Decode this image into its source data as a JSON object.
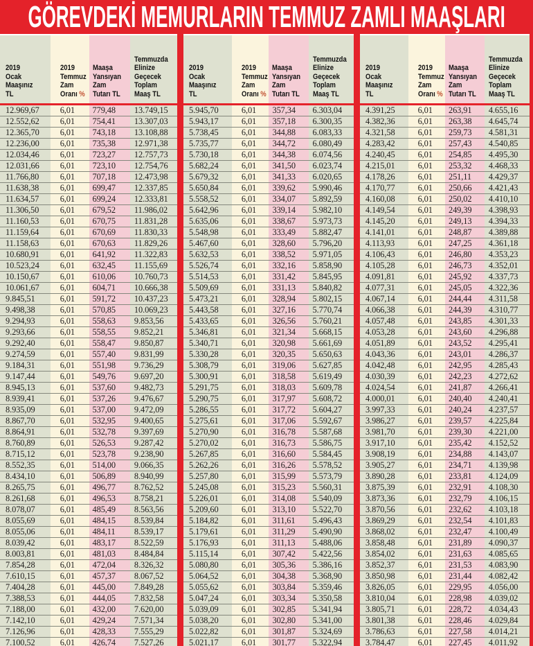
{
  "header": {
    "title": "GÖREVDEKİ MEMURLARIN TEMMUZ ZAMLI MAAŞLARI"
  },
  "column_headers": [
    {
      "id": "january-salary",
      "lines": [
        "2019",
        "Ocak",
        "Maaşınız",
        "TL"
      ]
    },
    {
      "id": "raise-rate",
      "lines": [
        "2019",
        "Temmuz",
        "Zam",
        "Oranı"
      ],
      "percent_suffix": "%"
    },
    {
      "id": "raise-amount",
      "lines": [
        "Maaşa",
        "Yansıyan",
        "Zam",
        "Tutarı TL"
      ]
    },
    {
      "id": "total-salary",
      "lines": [
        "Temmuzda",
        "Elinize",
        "Geçecek",
        "Toplam",
        "Maaş TL"
      ]
    }
  ],
  "colors": {
    "accent_red": "#e4222a",
    "band_green": "#dee1d0",
    "band_cream": "#fbf4dd",
    "band_pink": "#f5cdd5",
    "row_line": "#84877c",
    "text_color": "#1e1c1b",
    "percent_color": "#c25232"
  },
  "groups": [
    {
      "rows": [
        [
          "12.969,67",
          "6,01",
          "779,48",
          "13.749,15"
        ],
        [
          "12.552,62",
          "6,01",
          "754,41",
          "13.307,03"
        ],
        [
          "12.365,70",
          "6,01",
          "743,18",
          "13.108,88"
        ],
        [
          "12.236,00",
          "6,01",
          "735,38",
          "12.971,38"
        ],
        [
          "12.034,46",
          "6,01",
          "723,27",
          "12.757,73"
        ],
        [
          "12.031,66",
          "6,01",
          "723,10",
          "12.754,76"
        ],
        [
          "11.766,80",
          "6,01",
          "707,18",
          "12.473,98"
        ],
        [
          "11.638,38",
          "6,01",
          "699,47",
          "12.337,85"
        ],
        [
          "11.634,57",
          "6,01",
          "699,24",
          "12.333,81"
        ],
        [
          "11.306,50",
          "6,01",
          "679,52",
          "11.986,02"
        ],
        [
          "11.160,53",
          "6,01",
          "670,75",
          "11.831,28"
        ],
        [
          "11.159,64",
          "6,01",
          "670,69",
          "11.830,33"
        ],
        [
          "11.158,63",
          "6,01",
          "670,63",
          "11.829,26"
        ],
        [
          "10.680,91",
          "6,01",
          "641,92",
          "11.322,83"
        ],
        [
          "10.523,24",
          "6,01",
          "632,45",
          "11.155,69"
        ],
        [
          "10.150,67",
          "6,01",
          "610,06",
          "10.760,73"
        ],
        [
          "10.061,67",
          "6,01",
          "604,71",
          "10.666,38"
        ],
        [
          "9.845,51",
          "6,01",
          "591,72",
          "10.437,23"
        ],
        [
          "9.498,38",
          "6,01",
          "570,85",
          "10.069,23"
        ],
        [
          "9.294,93",
          "6,01",
          "558,63",
          "9.853,56"
        ],
        [
          "9.293,66",
          "6,01",
          "558,55",
          "9.852,21"
        ],
        [
          "9.292,40",
          "6,01",
          "558,47",
          "9.850,87"
        ],
        [
          "9.274,59",
          "6,01",
          "557,40",
          "9.831,99"
        ],
        [
          "9.184,31",
          "6,01",
          "551,98",
          "9.736,29"
        ],
        [
          "9.147,44",
          "6,01",
          "549,76",
          "9.697,20"
        ],
        [
          "8.945,13",
          "6,01",
          "537,60",
          "9.482,73"
        ],
        [
          "8.939,41",
          "6,01",
          "537,26",
          "9.476,67"
        ],
        [
          "8.935,09",
          "6,01",
          "537,00",
          "9.472,09"
        ],
        [
          "8.867,70",
          "6,01",
          "532,95",
          "9.400,65"
        ],
        [
          "8.864,91",
          "6,01",
          "532,78",
          "9.397,69"
        ],
        [
          "8.760,89",
          "6,01",
          "526,53",
          "9.287,42"
        ],
        [
          "8.715,12",
          "6,01",
          "523,78",
          "9.238,90"
        ],
        [
          "8.552,35",
          "6,01",
          "514,00",
          "9.066,35"
        ],
        [
          "8.434,10",
          "6,01",
          "506,89",
          "8.940,99"
        ],
        [
          "8.265,75",
          "6,01",
          "496,77",
          "8.762,52"
        ],
        [
          "8.261,68",
          "6,01",
          "496,53",
          "8.758,21"
        ],
        [
          "8.078,07",
          "6,01",
          "485,49",
          "8.563,56"
        ],
        [
          "8.055,69",
          "6,01",
          "484,15",
          "8.539,84"
        ],
        [
          "8.055,06",
          "6,01",
          "484,11",
          "8.539,17"
        ],
        [
          "8.039,42",
          "6,01",
          "483,17",
          "8.522,59"
        ],
        [
          "8.003,81",
          "6,01",
          "481,03",
          "8.484,84"
        ],
        [
          "7.854,28",
          "6,01",
          "472,04",
          "8.326,32"
        ],
        [
          "7.610,15",
          "6,01",
          "457,37",
          "8.067,52"
        ],
        [
          "7.404,28",
          "6,01",
          "445,00",
          "7.849,28"
        ],
        [
          "7.388,53",
          "6,01",
          "444,05",
          "7.832,58"
        ],
        [
          "7.188,00",
          "6,01",
          "432,00",
          "7.620,00"
        ],
        [
          "7.142,10",
          "6,01",
          "429,24",
          "7.571,34"
        ],
        [
          "7.126,96",
          "6,01",
          "428,33",
          "7.555,29"
        ],
        [
          "7.100,52",
          "6,01",
          "426,74",
          "7.527,26"
        ]
      ]
    },
    {
      "rows": [
        [
          "5.945,70",
          "6,01",
          "357,34",
          "6.303,04"
        ],
        [
          "5.943,17",
          "6,01",
          "357,18",
          "6.300,35"
        ],
        [
          "5.738,45",
          "6,01",
          "344,88",
          "6.083,33"
        ],
        [
          "5.735,77",
          "6,01",
          "344,72",
          "6.080,49"
        ],
        [
          "5.730,18",
          "6,01",
          "344,38",
          "6.074,56"
        ],
        [
          "5.682,24",
          "6,01",
          "341,50",
          "6.023,74"
        ],
        [
          "5.679,32",
          "6,01",
          "341,33",
          "6.020,65"
        ],
        [
          "5.650,84",
          "6,01",
          "339,62",
          "5.990,46"
        ],
        [
          "5.558,52",
          "6,01",
          "334,07",
          "5.892,59"
        ],
        [
          "5.642,96",
          "6,01",
          "339,14",
          "5.982,10"
        ],
        [
          "5.635,06",
          "6,01",
          "338,67",
          "5.973,73"
        ],
        [
          "5.548,98",
          "6,01",
          "333,49",
          "5.882,47"
        ],
        [
          "5.467,60",
          "6,01",
          "328,60",
          "5.796,20"
        ],
        [
          "5.632,53",
          "6,01",
          "338,52",
          "5.971,05"
        ],
        [
          "5.526,74",
          "6,01",
          "332,16",
          "5.858,90"
        ],
        [
          "5.514,53",
          "6,01",
          "331,42",
          "5.845,95"
        ],
        [
          "5.509,69",
          "6,01",
          "331,13",
          "5.840,82"
        ],
        [
          "5.473,21",
          "6,01",
          "328,94",
          "5.802,15"
        ],
        [
          "5.443,58",
          "6,01",
          "327,16",
          "5.770,74"
        ],
        [
          "5.433,65",
          "6,01",
          "326,56",
          "5.760,21"
        ],
        [
          "5.346,81",
          "6,01",
          "321,34",
          "5.668,15"
        ],
        [
          "5.340,71",
          "6,01",
          "320,98",
          "5.661,69"
        ],
        [
          "5.330,28",
          "6,01",
          "320,35",
          "5.650,63"
        ],
        [
          "5.308,79",
          "6,01",
          "319,06",
          "5.627,85"
        ],
        [
          "5.300,91",
          "6,01",
          "318,58",
          "5.619,49"
        ],
        [
          "5.291,75",
          "6,01",
          "318,03",
          "5.609,78"
        ],
        [
          "5.290,75",
          "6,01",
          "317,97",
          "5.608,72"
        ],
        [
          "5.286,55",
          "6,01",
          "317,72",
          "5.604,27"
        ],
        [
          "5.275,61",
          "6,01",
          "317,06",
          "5.592,67"
        ],
        [
          "5.270,90",
          "6,01",
          "316,78",
          "5.587,68"
        ],
        [
          "5.270,02",
          "6,01",
          "316,73",
          "5.586,75"
        ],
        [
          "5.267,85",
          "6,01",
          "316,60",
          "5.584,45"
        ],
        [
          "5.262,26",
          "6,01",
          "316,26",
          "5.578,52"
        ],
        [
          "5.257,80",
          "6,01",
          "315,99",
          "5.573,79"
        ],
        [
          "5.245,08",
          "6,01",
          "315,23",
          "5.560,31"
        ],
        [
          "5.226,01",
          "6,01",
          "314,08",
          "5.540,09"
        ],
        [
          "5.209,60",
          "6,01",
          "313,10",
          "5.522,70"
        ],
        [
          "5.184,82",
          "6,01",
          "311,61",
          "5.496,43"
        ],
        [
          "5.179,61",
          "6,01",
          "311,29",
          "5.490,90"
        ],
        [
          "5.176,93",
          "6,01",
          "311,13",
          "5.488,06"
        ],
        [
          "5.115,14",
          "6,01",
          "307,42",
          "5.422,56"
        ],
        [
          "5.080,80",
          "6,01",
          "305,36",
          "5.386,16"
        ],
        [
          "5.064,52",
          "6,01",
          "304,38",
          "5.368,90"
        ],
        [
          "5.055,62",
          "6,01",
          "303,84",
          "5.359,46"
        ],
        [
          "5.047,24",
          "6,01",
          "303,34",
          "5.350,58"
        ],
        [
          "5.039,09",
          "6,01",
          "302,85",
          "5.341,94"
        ],
        [
          "5.038,20",
          "6,01",
          "302,80",
          "5.341,00"
        ],
        [
          "5.022,82",
          "6,01",
          "301,87",
          "5.324,69"
        ],
        [
          "5.021,17",
          "6,01",
          "301,77",
          "5.322,94"
        ]
      ]
    },
    {
      "rows": [
        [
          "4.391,25",
          "6,01",
          "263,91",
          "4.655,16"
        ],
        [
          "4.382,36",
          "6,01",
          "263,38",
          "4.645,74"
        ],
        [
          "4.321,58",
          "6,01",
          "259,73",
          "4.581,31"
        ],
        [
          "4.283,42",
          "6,01",
          "257,43",
          "4.540,85"
        ],
        [
          "4.240,45",
          "6,01",
          "254,85",
          "4.495,30"
        ],
        [
          "4.215,01",
          "6,01",
          "253,32",
          "4.468,33"
        ],
        [
          "4.178,26",
          "6,01",
          "251,11",
          "4.429,37"
        ],
        [
          "4.170,77",
          "6,01",
          "250,66",
          "4.421,43"
        ],
        [
          "4.160,08",
          "6,01",
          "250,02",
          "4.410,10"
        ],
        [
          "4.149,54",
          "6,01",
          "249,39",
          "4.398,93"
        ],
        [
          "4.145,20",
          "6,01",
          "249,13",
          "4.394,33"
        ],
        [
          "4.141,01",
          "6,01",
          "248,87",
          "4.389,88"
        ],
        [
          "4.113,93",
          "6,01",
          "247,25",
          "4.361,18"
        ],
        [
          "4.106,43",
          "6,01",
          "246,80",
          "4.353,23"
        ],
        [
          "4.105,28",
          "6,01",
          "246,73",
          "4.352,01"
        ],
        [
          "4.091,81",
          "6,01",
          "245,92",
          "4.337,73"
        ],
        [
          "4.077,31",
          "6,01",
          "245,05",
          "4.322,36"
        ],
        [
          "4.067,14",
          "6,01",
          "244,44",
          "4.311,58"
        ],
        [
          "4.066,38",
          "6,01",
          "244,39",
          "4.310,77"
        ],
        [
          "4.057,48",
          "6,01",
          "243,85",
          "4.301,33"
        ],
        [
          "4.053,28",
          "6,01",
          "243,60",
          "4.296,88"
        ],
        [
          "4.051,89",
          "6,01",
          "243,52",
          "4.295,41"
        ],
        [
          "4.043,36",
          "6,01",
          "243,01",
          "4.286,37"
        ],
        [
          "4.042,48",
          "6,01",
          "242,95",
          "4.285,43"
        ],
        [
          "4.030,39",
          "6,01",
          "242,23",
          "4.272,62"
        ],
        [
          "4.024,54",
          "6,01",
          "241,87",
          "4.266,41"
        ],
        [
          "4.000,01",
          "6,01",
          "240,40",
          "4.240,41"
        ],
        [
          "3.997,33",
          "6,01",
          "240,24",
          "4.237,57"
        ],
        [
          "3.986,27",
          "6,01",
          "239,57",
          "4.225,84"
        ],
        [
          "3.981,70",
          "6,01",
          "239,30",
          "4.221,00"
        ],
        [
          "3.917,10",
          "6,01",
          "235,42",
          "4.152,52"
        ],
        [
          "3.908,19",
          "6,01",
          "234,88",
          "4.143,07"
        ],
        [
          "3.905,27",
          "6,01",
          "234,71",
          "4.139,98"
        ],
        [
          "3.890,28",
          "6,01",
          "233,81",
          "4.124,09"
        ],
        [
          "3.875,39",
          "6,01",
          "232,91",
          "4.108,30"
        ],
        [
          "3.873,36",
          "6,01",
          "232,79",
          "4.106,15"
        ],
        [
          "3.870,56",
          "6,01",
          "232,62",
          "4.103,18"
        ],
        [
          "3.869,29",
          "6,01",
          "232,54",
          "4.101,83"
        ],
        [
          "3.868,02",
          "6,01",
          "232,47",
          "4.100,49"
        ],
        [
          "3.858,48",
          "6,01",
          "231,89",
          "4.090,37"
        ],
        [
          "3.854,02",
          "6,01",
          "231,63",
          "4.085,65"
        ],
        [
          "3.852,37",
          "6,01",
          "231,53",
          "4.083,90"
        ],
        [
          "3.850,98",
          "6,01",
          "231,44",
          "4.082,42"
        ],
        [
          "3.826,05",
          "6,01",
          "229,95",
          "4.056,00"
        ],
        [
          "3.810,04",
          "6,01",
          "228,98",
          "4.039,02"
        ],
        [
          "3.805,71",
          "6,01",
          "228,72",
          "4.034,43"
        ],
        [
          "3.801,38",
          "6,01",
          "228,46",
          "4.029,84"
        ],
        [
          "3.786,63",
          "6,01",
          "227,58",
          "4.014,21"
        ],
        [
          "3.784,47",
          "6,01",
          "227,45",
          "4.011,92"
        ]
      ]
    }
  ]
}
